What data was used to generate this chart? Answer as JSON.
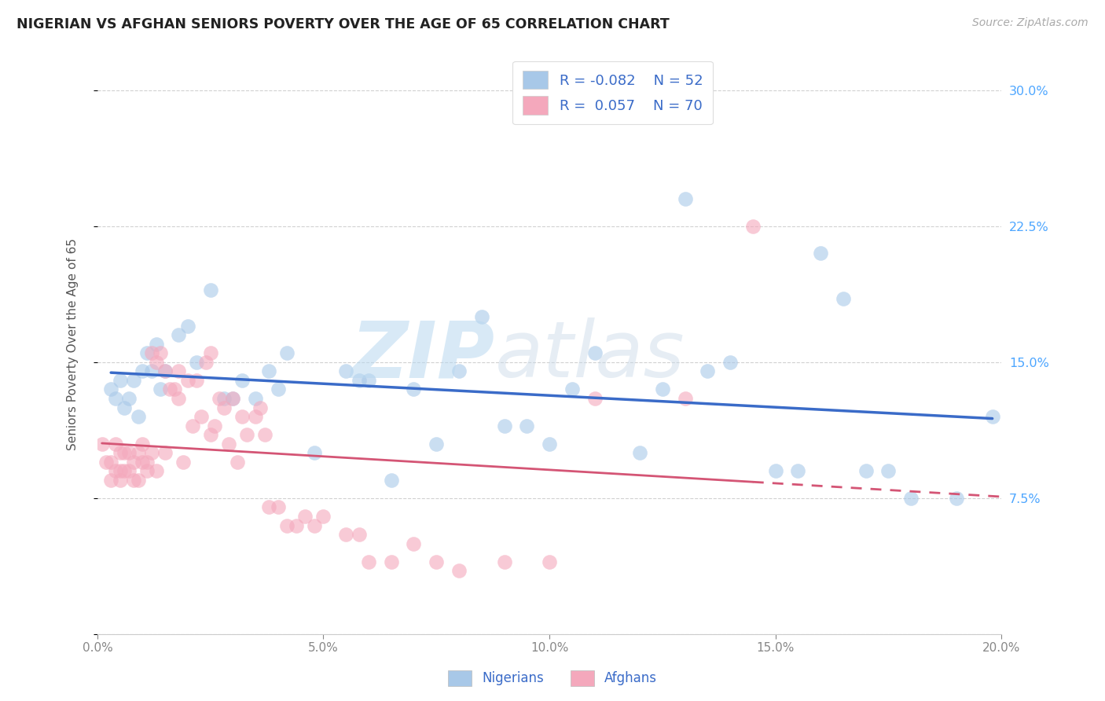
{
  "title": "NIGERIAN VS AFGHAN SENIORS POVERTY OVER THE AGE OF 65 CORRELATION CHART",
  "source": "Source: ZipAtlas.com",
  "ylabel": "Seniors Poverty Over the Age of 65",
  "xlim": [
    0.0,
    0.2
  ],
  "ylim": [
    0.0,
    0.32
  ],
  "xticks": [
    0.0,
    0.05,
    0.1,
    0.15,
    0.2
  ],
  "xtick_labels": [
    "0.0%",
    "5.0%",
    "10.0%",
    "15.0%",
    "20.0%"
  ],
  "yticks": [
    0.0,
    0.075,
    0.15,
    0.225,
    0.3
  ],
  "ytick_labels": [
    "",
    "7.5%",
    "15.0%",
    "22.5%",
    "30.0%"
  ],
  "nigerian_R": -0.082,
  "nigerian_N": 52,
  "afghan_R": 0.057,
  "afghan_N": 70,
  "nigerian_color": "#a8c8e8",
  "afghan_color": "#f4a8bc",
  "nigerian_line_color": "#3a6bc8",
  "afghan_line_color": "#d45575",
  "watermark_zip": "ZIP",
  "watermark_atlas": "atlas",
  "nigerian_x": [
    0.003,
    0.004,
    0.005,
    0.006,
    0.007,
    0.008,
    0.009,
    0.01,
    0.011,
    0.012,
    0.013,
    0.014,
    0.015,
    0.018,
    0.02,
    0.022,
    0.025,
    0.028,
    0.03,
    0.032,
    0.035,
    0.038,
    0.04,
    0.042,
    0.048,
    0.055,
    0.058,
    0.06,
    0.065,
    0.07,
    0.075,
    0.08,
    0.085,
    0.09,
    0.095,
    0.1,
    0.105,
    0.11,
    0.12,
    0.125,
    0.13,
    0.135,
    0.14,
    0.15,
    0.155,
    0.16,
    0.165,
    0.17,
    0.175,
    0.18,
    0.19,
    0.198
  ],
  "nigerian_y": [
    0.135,
    0.13,
    0.14,
    0.125,
    0.13,
    0.14,
    0.12,
    0.145,
    0.155,
    0.145,
    0.16,
    0.135,
    0.145,
    0.165,
    0.17,
    0.15,
    0.19,
    0.13,
    0.13,
    0.14,
    0.13,
    0.145,
    0.135,
    0.155,
    0.1,
    0.145,
    0.14,
    0.14,
    0.085,
    0.135,
    0.105,
    0.145,
    0.175,
    0.115,
    0.115,
    0.105,
    0.135,
    0.155,
    0.1,
    0.135,
    0.24,
    0.145,
    0.15,
    0.09,
    0.09,
    0.21,
    0.185,
    0.09,
    0.09,
    0.075,
    0.075,
    0.12
  ],
  "afghan_x": [
    0.001,
    0.002,
    0.003,
    0.003,
    0.004,
    0.004,
    0.005,
    0.005,
    0.005,
    0.006,
    0.006,
    0.007,
    0.007,
    0.008,
    0.008,
    0.009,
    0.009,
    0.01,
    0.01,
    0.011,
    0.011,
    0.012,
    0.012,
    0.013,
    0.013,
    0.014,
    0.015,
    0.015,
    0.016,
    0.017,
    0.018,
    0.018,
    0.019,
    0.02,
    0.021,
    0.022,
    0.023,
    0.024,
    0.025,
    0.025,
    0.026,
    0.027,
    0.028,
    0.029,
    0.03,
    0.031,
    0.032,
    0.033,
    0.035,
    0.036,
    0.037,
    0.038,
    0.04,
    0.042,
    0.044,
    0.046,
    0.048,
    0.05,
    0.055,
    0.058,
    0.06,
    0.065,
    0.07,
    0.075,
    0.08,
    0.09,
    0.1,
    0.11,
    0.13,
    0.145
  ],
  "afghan_y": [
    0.105,
    0.095,
    0.095,
    0.085,
    0.105,
    0.09,
    0.09,
    0.085,
    0.1,
    0.09,
    0.1,
    0.09,
    0.1,
    0.085,
    0.095,
    0.085,
    0.1,
    0.095,
    0.105,
    0.09,
    0.095,
    0.1,
    0.155,
    0.15,
    0.09,
    0.155,
    0.145,
    0.1,
    0.135,
    0.135,
    0.13,
    0.145,
    0.095,
    0.14,
    0.115,
    0.14,
    0.12,
    0.15,
    0.155,
    0.11,
    0.115,
    0.13,
    0.125,
    0.105,
    0.13,
    0.095,
    0.12,
    0.11,
    0.12,
    0.125,
    0.11,
    0.07,
    0.07,
    0.06,
    0.06,
    0.065,
    0.06,
    0.065,
    0.055,
    0.055,
    0.04,
    0.04,
    0.05,
    0.04,
    0.035,
    0.04,
    0.04,
    0.13,
    0.13,
    0.225
  ]
}
